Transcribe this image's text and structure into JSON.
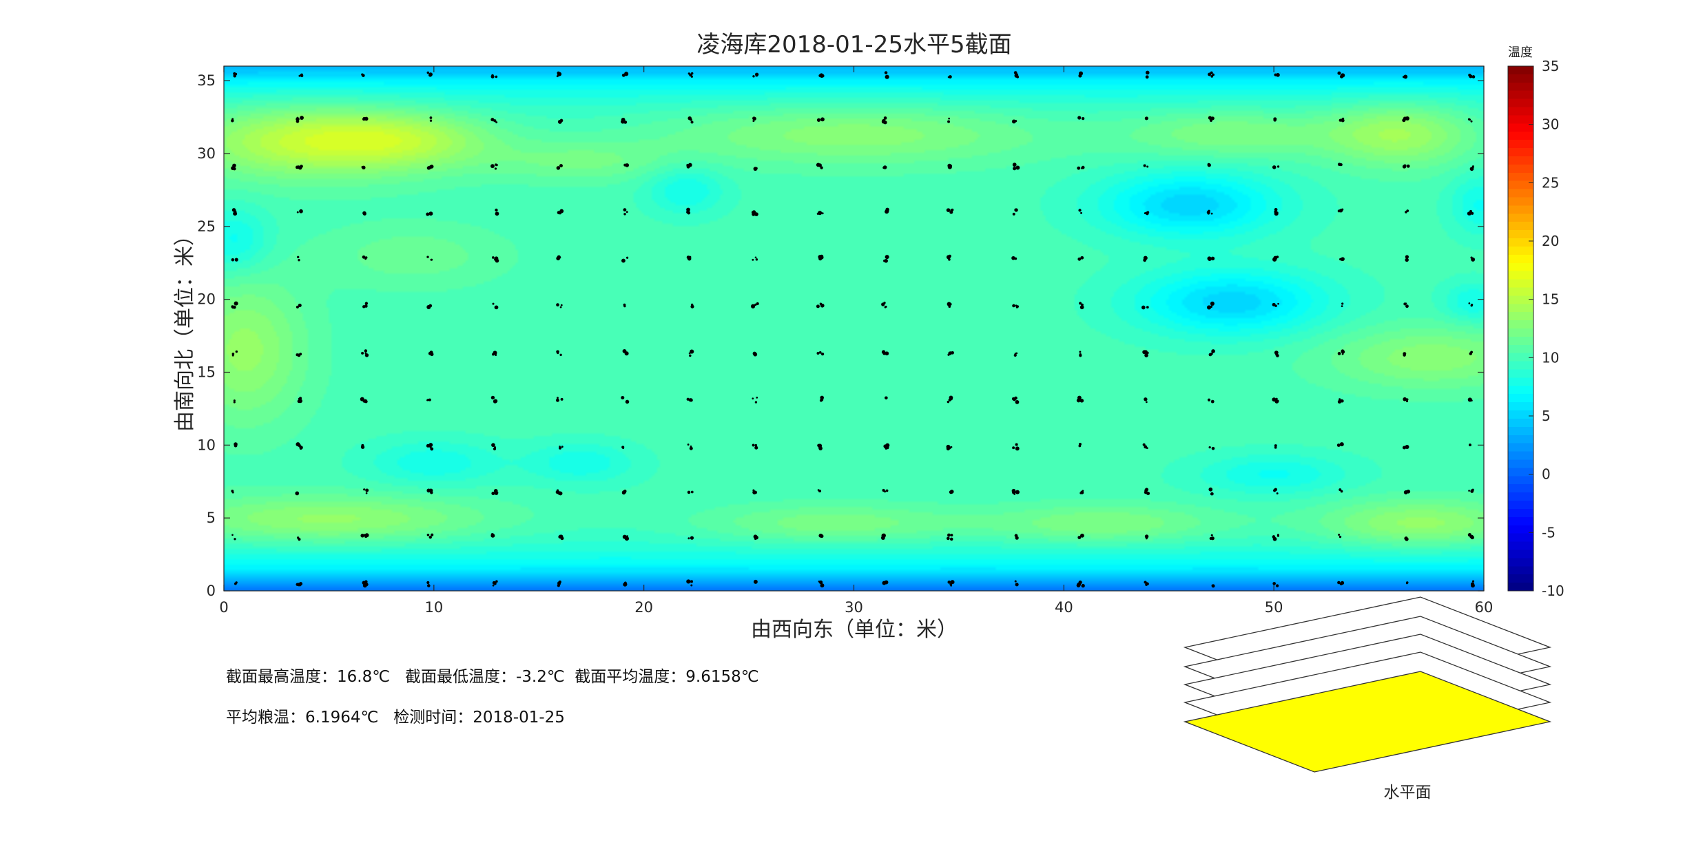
{
  "chart_data": {
    "type": "heatmap",
    "title": "凌海库2018-01-25水平5截面",
    "xlabel": "由西向东（单位：米）",
    "ylabel": "由南向北（单位：米）",
    "xlim": [
      0,
      60
    ],
    "ylim": [
      0,
      36
    ],
    "xticks": [
      0,
      10,
      20,
      30,
      40,
      50,
      60
    ],
    "yticks": [
      0,
      5,
      10,
      15,
      20,
      25,
      30,
      35
    ],
    "colorbar": {
      "label": "温度",
      "min": -10,
      "max": 35,
      "ticks": [
        -10,
        -5,
        0,
        5,
        10,
        15,
        20,
        25,
        30,
        35
      ],
      "colormap": "jet"
    },
    "field": {
      "base": 10.0,
      "edge": {
        "south_y": 0,
        "north_y": 36,
        "south_temp": 0.0,
        "north_temp": 3.0,
        "band_width": 1.6
      },
      "hotspots": [
        {
          "x": 4,
          "y": 31,
          "sx": 4.0,
          "sy": 1.8,
          "amp": 5.8
        },
        {
          "x": 9,
          "y": 31,
          "sx": 3.0,
          "sy": 1.4,
          "amp": 3.5
        },
        {
          "x": 30,
          "y": 31.5,
          "sx": 6.5,
          "sy": 1.5,
          "amp": 3.5
        },
        {
          "x": 48,
          "y": 31.5,
          "sx": 3.5,
          "sy": 1.2,
          "amp": 3.0
        },
        {
          "x": 56,
          "y": 31.5,
          "sx": 2.5,
          "sy": 1.6,
          "amp": 4.5
        },
        {
          "x": 1,
          "y": 16.5,
          "sx": 2.0,
          "sy": 3.5,
          "amp": 3.5
        },
        {
          "x": 57.5,
          "y": 16,
          "sx": 3.5,
          "sy": 1.5,
          "amp": 3.0
        },
        {
          "x": 5,
          "y": 4.8,
          "sx": 5.5,
          "sy": 1.2,
          "amp": 4.0
        },
        {
          "x": 29,
          "y": 4.5,
          "sx": 4.5,
          "sy": 1.0,
          "amp": 3.0
        },
        {
          "x": 42,
          "y": 4.5,
          "sx": 4.0,
          "sy": 1.0,
          "amp": 3.2
        },
        {
          "x": 57,
          "y": 4.5,
          "sx": 3.5,
          "sy": 1.2,
          "amp": 4.2
        },
        {
          "x": 17,
          "y": 29.5,
          "sx": 3.0,
          "sy": 1.0,
          "amp": 2.0
        },
        {
          "x": 9,
          "y": 23,
          "sx": 3.0,
          "sy": 1.5,
          "amp": 1.6
        }
      ],
      "coldspots": [
        {
          "x": 46,
          "y": 26.5,
          "sx": 3.0,
          "sy": 1.6,
          "amp": -5.0
        },
        {
          "x": 48,
          "y": 19.8,
          "sx": 3.2,
          "sy": 1.6,
          "amp": -5.0
        },
        {
          "x": 22,
          "y": 27.5,
          "sx": 1.3,
          "sy": 1.2,
          "amp": -2.5
        },
        {
          "x": 10,
          "y": 8.8,
          "sx": 2.2,
          "sy": 1.1,
          "amp": -2.3
        },
        {
          "x": 17,
          "y": 8.8,
          "sx": 1.8,
          "sy": 1.0,
          "amp": -2.3
        },
        {
          "x": 50,
          "y": 8.0,
          "sx": 2.5,
          "sy": 1.0,
          "amp": -2.5
        },
        {
          "x": 0.5,
          "y": 24,
          "sx": 1.2,
          "sy": 1.6,
          "amp": -2.8
        },
        {
          "x": 59.5,
          "y": 19.8,
          "sx": 1.0,
          "sy": 1.0,
          "amp": -2.5
        },
        {
          "x": 59.8,
          "y": 26.5,
          "sx": 1.0,
          "sy": 1.5,
          "amp": -2.5
        }
      ]
    },
    "sensor_grid": {
      "x": [
        0.5,
        3.6,
        6.7,
        9.8,
        12.9,
        16.0,
        19.1,
        22.2,
        25.3,
        28.4,
        31.5,
        34.6,
        37.7,
        40.8,
        43.9,
        47.0,
        50.1,
        53.2,
        56.3,
        59.4
      ],
      "y": [
        0.5,
        3.7,
        6.8,
        9.9,
        13.1,
        16.3,
        19.6,
        22.8,
        26.0,
        29.1,
        32.3,
        35.4
      ]
    }
  },
  "info": {
    "line1": "截面最高温度：16.8℃   截面最低温度：-3.2℃  截面平均温度：9.6158℃",
    "line2": "平均粮温：6.1964℃   检测时间：2018-01-25"
  },
  "layers": {
    "label": "水平面",
    "count": 5,
    "selected_index": 4,
    "selected_color": "#ffff00"
  }
}
